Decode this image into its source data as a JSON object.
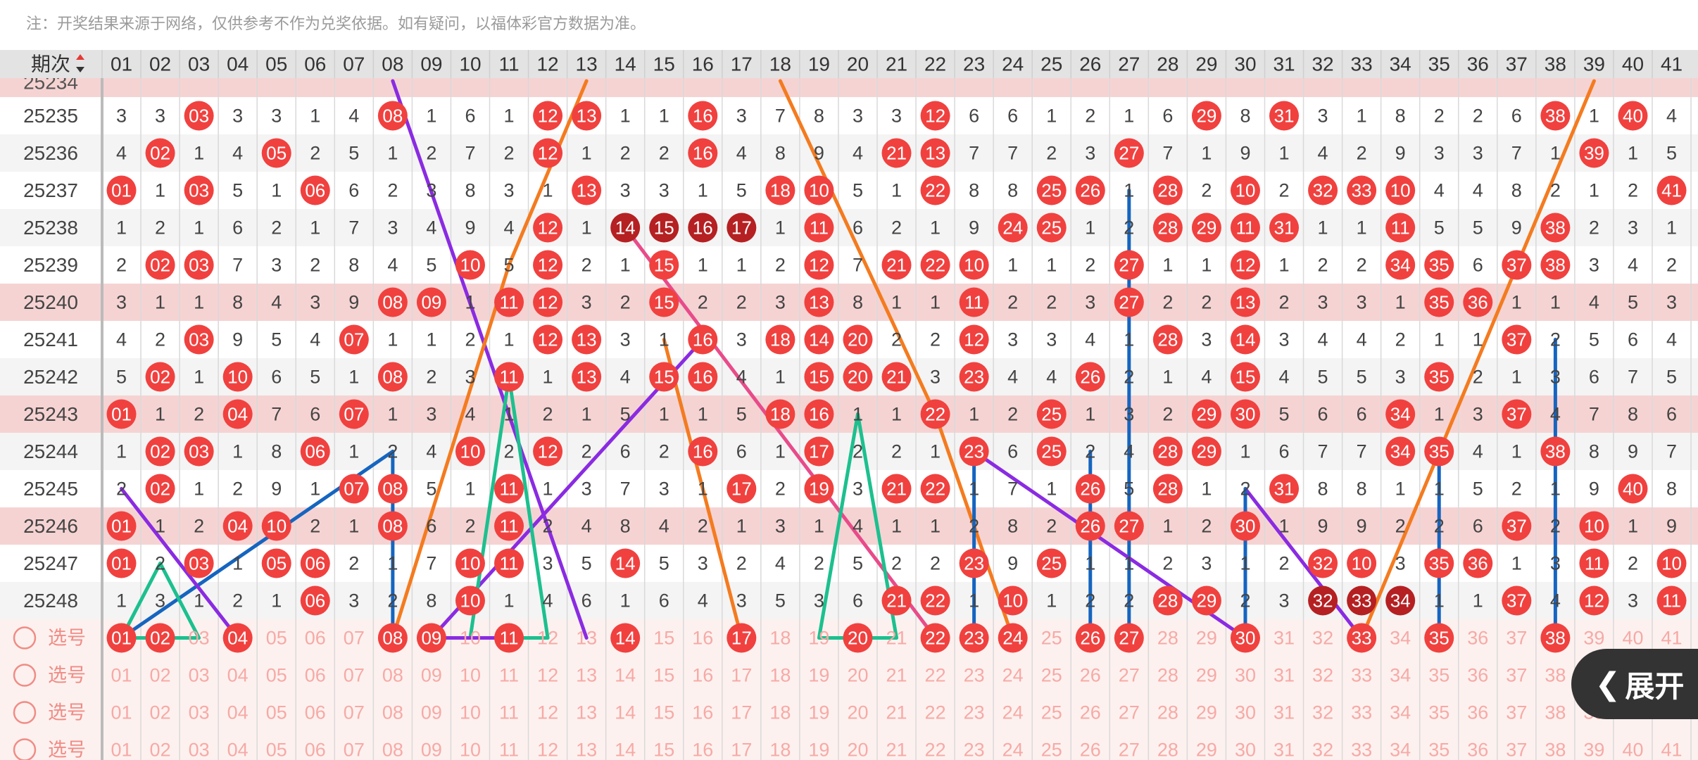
{
  "note": "注：开奖结果来源于网络，仅供参考不作为兑奖依据。如有疑问，以福体彩官方数据为准。",
  "header": {
    "period_label": "期次",
    "sort_icon": "sort-up-down-icon",
    "numbers": [
      "01",
      "02",
      "03",
      "04",
      "05",
      "06",
      "07",
      "08",
      "09",
      "10",
      "11",
      "12",
      "13",
      "14",
      "15",
      "16",
      "17",
      "18",
      "19",
      "20",
      "21",
      "22",
      "23",
      "24",
      "25",
      "26",
      "27",
      "28",
      "29",
      "30",
      "31",
      "32",
      "33",
      "34",
      "35",
      "36",
      "37",
      "38",
      "39",
      "40",
      "41"
    ]
  },
  "partial_row_label": "25234",
  "rows": [
    {
      "period": "25235",
      "shaded": false,
      "cells": [
        "3",
        "3",
        "03",
        "3",
        "3",
        "1",
        "4",
        "08",
        "1",
        "6",
        "1",
        "12",
        "13",
        "1",
        "1",
        "16",
        "3",
        "7",
        "8",
        "3",
        "3",
        "12",
        "6",
        "6",
        "1",
        "2",
        "1",
        "6",
        "29",
        "8",
        "31",
        "3",
        "1",
        "8",
        "2",
        "2",
        "6",
        "38",
        "1",
        "40",
        "4"
      ]
    },
    {
      "period": "25236",
      "shaded": false,
      "cells": [
        "4",
        "02",
        "1",
        "4",
        "05",
        "2",
        "5",
        "1",
        "2",
        "7",
        "2",
        "12",
        "1",
        "2",
        "2",
        "16",
        "4",
        "8",
        "9",
        "4",
        "21",
        "13",
        "7",
        "7",
        "2",
        "3",
        "27",
        "7",
        "1",
        "9",
        "1",
        "4",
        "2",
        "9",
        "3",
        "3",
        "7",
        "1",
        "39",
        "1",
        "5"
      ]
    },
    {
      "period": "25237",
      "shaded": false,
      "cells": [
        "01",
        "1",
        "03",
        "5",
        "1",
        "06",
        "6",
        "2",
        "3",
        "8",
        "3",
        "1",
        "13",
        "3",
        "3",
        "1",
        "5",
        "18",
        "10",
        "5",
        "1",
        "22",
        "8",
        "8",
        "25",
        "26",
        "1",
        "28",
        "2",
        "10",
        "2",
        "32",
        "33",
        "10",
        "4",
        "4",
        "8",
        "2",
        "1",
        "2",
        "41"
      ]
    },
    {
      "period": "25238",
      "shaded": false,
      "cells": [
        "1",
        "2",
        "1",
        "6",
        "2",
        "1",
        "7",
        "3",
        "4",
        "9",
        "4",
        "12",
        "1",
        "14",
        "15",
        "16",
        "17",
        "1",
        "11",
        "6",
        "2",
        "1",
        "9",
        "24",
        "25",
        "1",
        "2",
        "28",
        "29",
        "11",
        "31",
        "1",
        "1",
        "11",
        "5",
        "5",
        "9",
        "38",
        "2",
        "3",
        "1"
      ]
    },
    {
      "period": "25239",
      "shaded": false,
      "cells": [
        "2",
        "02",
        "03",
        "7",
        "3",
        "2",
        "8",
        "4",
        "5",
        "10",
        "5",
        "12",
        "2",
        "1",
        "15",
        "1",
        "1",
        "2",
        "12",
        "7",
        "21",
        "22",
        "10",
        "1",
        "1",
        "2",
        "27",
        "1",
        "1",
        "12",
        "1",
        "2",
        "2",
        "34",
        "35",
        "6",
        "37",
        "38",
        "3",
        "4",
        "2"
      ]
    },
    {
      "period": "25240",
      "shaded": true,
      "cells": [
        "3",
        "1",
        "1",
        "8",
        "4",
        "3",
        "9",
        "08",
        "09",
        "1",
        "11",
        "12",
        "3",
        "2",
        "15",
        "2",
        "2",
        "3",
        "13",
        "8",
        "1",
        "1",
        "11",
        "2",
        "2",
        "3",
        "27",
        "2",
        "2",
        "13",
        "2",
        "3",
        "3",
        "1",
        "35",
        "36",
        "1",
        "1",
        "4",
        "5",
        "3"
      ]
    },
    {
      "period": "25241",
      "shaded": false,
      "cells": [
        "4",
        "2",
        "03",
        "9",
        "5",
        "4",
        "07",
        "1",
        "1",
        "2",
        "1",
        "12",
        "13",
        "3",
        "1",
        "16",
        "3",
        "18",
        "14",
        "20",
        "2",
        "2",
        "12",
        "3",
        "3",
        "4",
        "1",
        "28",
        "3",
        "14",
        "3",
        "4",
        "4",
        "2",
        "1",
        "1",
        "37",
        "2",
        "5",
        "6",
        "4"
      ]
    },
    {
      "period": "25242",
      "shaded": false,
      "cells": [
        "5",
        "02",
        "1",
        "10",
        "6",
        "5",
        "1",
        "08",
        "2",
        "3",
        "11",
        "1",
        "13",
        "4",
        "15",
        "16",
        "4",
        "1",
        "15",
        "20",
        "21",
        "3",
        "23",
        "4",
        "4",
        "26",
        "2",
        "1",
        "4",
        "15",
        "4",
        "5",
        "5",
        "3",
        "35",
        "2",
        "1",
        "3",
        "6",
        "7",
        "5"
      ]
    },
    {
      "period": "25243",
      "shaded": true,
      "cells": [
        "01",
        "1",
        "2",
        "04",
        "7",
        "6",
        "07",
        "1",
        "3",
        "4",
        "1",
        "2",
        "1",
        "5",
        "1",
        "1",
        "5",
        "18",
        "16",
        "1",
        "1",
        "22",
        "1",
        "2",
        "25",
        "1",
        "3",
        "2",
        "29",
        "30",
        "5",
        "6",
        "6",
        "34",
        "1",
        "3",
        "37",
        "4",
        "7",
        "8",
        "6"
      ]
    },
    {
      "period": "25244",
      "shaded": false,
      "cells": [
        "1",
        "02",
        "03",
        "1",
        "8",
        "06",
        "1",
        "2",
        "4",
        "10",
        "2",
        "12",
        "2",
        "6",
        "2",
        "16",
        "6",
        "1",
        "17",
        "2",
        "2",
        "1",
        "23",
        "6",
        "25",
        "2",
        "4",
        "28",
        "29",
        "1",
        "6",
        "7",
        "7",
        "34",
        "35",
        "4",
        "1",
        "38",
        "8",
        "9",
        "7"
      ]
    },
    {
      "period": "25245",
      "shaded": false,
      "cells": [
        "2",
        "02",
        "1",
        "2",
        "9",
        "1",
        "07",
        "08",
        "5",
        "1",
        "11",
        "1",
        "3",
        "7",
        "3",
        "1",
        "17",
        "2",
        "19",
        "3",
        "21",
        "22",
        "1",
        "7",
        "1",
        "26",
        "5",
        "28",
        "1",
        "2",
        "31",
        "8",
        "8",
        "1",
        "1",
        "5",
        "2",
        "1",
        "9",
        "40",
        "8"
      ]
    },
    {
      "period": "25246",
      "shaded": true,
      "cells": [
        "01",
        "1",
        "2",
        "04",
        "10",
        "2",
        "1",
        "08",
        "6",
        "2",
        "11",
        "2",
        "4",
        "8",
        "4",
        "2",
        "1",
        "3",
        "1",
        "4",
        "1",
        "1",
        "2",
        "8",
        "2",
        "26",
        "27",
        "1",
        "2",
        "30",
        "1",
        "9",
        "9",
        "2",
        "2",
        "6",
        "37",
        "2",
        "10",
        "1",
        "9"
      ]
    },
    {
      "period": "25247",
      "shaded": false,
      "cells": [
        "01",
        "2",
        "03",
        "1",
        "05",
        "06",
        "2",
        "1",
        "7",
        "10",
        "11",
        "3",
        "5",
        "14",
        "5",
        "3",
        "2",
        "4",
        "2",
        "5",
        "2",
        "2",
        "23",
        "9",
        "25",
        "1",
        "1",
        "2",
        "3",
        "1",
        "2",
        "32",
        "10",
        "3",
        "35",
        "36",
        "1",
        "3",
        "11",
        "2",
        "10"
      ]
    },
    {
      "period": "25248",
      "shaded": false,
      "cells": [
        "1",
        "3",
        "1",
        "2",
        "1",
        "06",
        "3",
        "2",
        "8",
        "10",
        "1",
        "4",
        "6",
        "1",
        "6",
        "4",
        "3",
        "5",
        "3",
        "6",
        "21",
        "22",
        "1",
        "10",
        "1",
        "2",
        "2",
        "28",
        "29",
        "2",
        "3",
        "32",
        "33",
        "34",
        "1",
        "1",
        "37",
        "4",
        "12",
        "3",
        "11"
      ]
    }
  ],
  "pick_label": "选号",
  "pick_rows_selected": [
    [
      "01",
      "02",
      "04",
      "08",
      "09",
      "11",
      "14",
      "17",
      "20",
      "22",
      "23",
      "24",
      "26",
      "27",
      "30",
      "33",
      "35",
      "38"
    ],
    [],
    [],
    []
  ],
  "lines": [
    {
      "color": "#8a2be2",
      "pts": [
        [
          8,
          -1.5
        ],
        [
          13,
          17
        ]
      ]
    },
    {
      "color": "#f47b1f",
      "pts": [
        [
          13,
          -1.5
        ],
        [
          11,
          4
        ],
        [
          8,
          17
        ]
      ]
    },
    {
      "color": "#f47b1f",
      "pts": [
        [
          18,
          -1.5
        ],
        [
          22,
          8
        ],
        [
          24,
          17
        ]
      ]
    },
    {
      "color": "#1565c0",
      "pts": [
        [
          27,
          2
        ],
        [
          27,
          17
        ]
      ]
    },
    {
      "color": "#e84b8a",
      "pts": [
        [
          14,
          3
        ],
        [
          22,
          17
        ]
      ]
    },
    {
      "color": "#f47b1f",
      "pts": [
        [
          15,
          6
        ],
        [
          17,
          17
        ]
      ]
    },
    {
      "color": "#8a2be2",
      "pts": [
        [
          16,
          6
        ],
        [
          9,
          17
        ]
      ]
    },
    {
      "color": "#1cc08e",
      "pts": [
        [
          11,
          7
        ],
        [
          12,
          15
        ],
        [
          11,
          17
        ]
      ]
    },
    {
      "color": "#1cc08e",
      "pts": [
        [
          11,
          7
        ],
        [
          10,
          15
        ],
        [
          11,
          17
        ]
      ]
    },
    {
      "color": "#1cc08e",
      "pts": [
        [
          20,
          8
        ],
        [
          19,
          15
        ],
        [
          20,
          17
        ]
      ]
    },
    {
      "color": "#1cc08e",
      "pts": [
        [
          20,
          8
        ],
        [
          21,
          15
        ],
        [
          20,
          17
        ]
      ]
    },
    {
      "color": "#f47b1f",
      "pts": [
        [
          39,
          -1.5
        ],
        [
          33,
          17
        ]
      ]
    },
    {
      "color": "#1565c0",
      "pts": [
        [
          38,
          6
        ],
        [
          38,
          17
        ]
      ]
    },
    {
      "color": "#1565c0",
      "pts": [
        [
          8,
          9
        ],
        [
          8,
          17
        ]
      ]
    },
    {
      "color": "#1565c0",
      "pts": [
        [
          8,
          9
        ],
        [
          1,
          17
        ]
      ]
    },
    {
      "color": "#1565c0",
      "pts": [
        [
          23,
          9
        ],
        [
          23,
          17
        ]
      ]
    },
    {
      "color": "#1565c0",
      "pts": [
        [
          26,
          9
        ],
        [
          26,
          17
        ]
      ]
    },
    {
      "color": "#1565c0",
      "pts": [
        [
          35,
          9
        ],
        [
          35,
          17
        ]
      ]
    },
    {
      "color": "#8a2be2",
      "pts": [
        [
          23,
          9
        ],
        [
          30,
          17
        ]
      ]
    },
    {
      "color": "#8a2be2",
      "pts": [
        [
          30,
          10
        ],
        [
          33,
          17
        ]
      ]
    },
    {
      "color": "#1565c0",
      "pts": [
        [
          30,
          10
        ],
        [
          30,
          17
        ]
      ]
    },
    {
      "color": "#8a2be2",
      "pts": [
        [
          1,
          10
        ],
        [
          4,
          17
        ]
      ]
    },
    {
      "color": "#1cc08e",
      "pts": [
        [
          1,
          15
        ],
        [
          2,
          12
        ],
        [
          3,
          15
        ],
        [
          2,
          17
        ],
        [
          1,
          15
        ]
      ]
    },
    {
      "color": "#8a2be2",
      "pts": [
        [
          9,
          17
        ],
        [
          11,
          15
        ]
      ]
    }
  ],
  "expand_button": {
    "label": "展开",
    "icon": "chevron-left-icon"
  },
  "colors": {
    "ball_red": "#f0413f",
    "ball_dark": "#b52022",
    "band_red": "#f6d3d3",
    "row_alt": "#f4f4f4",
    "header_bg": "#e3e3e3",
    "pick_bg": "#fdf1ef",
    "pick_text": "#f6aaa6"
  }
}
